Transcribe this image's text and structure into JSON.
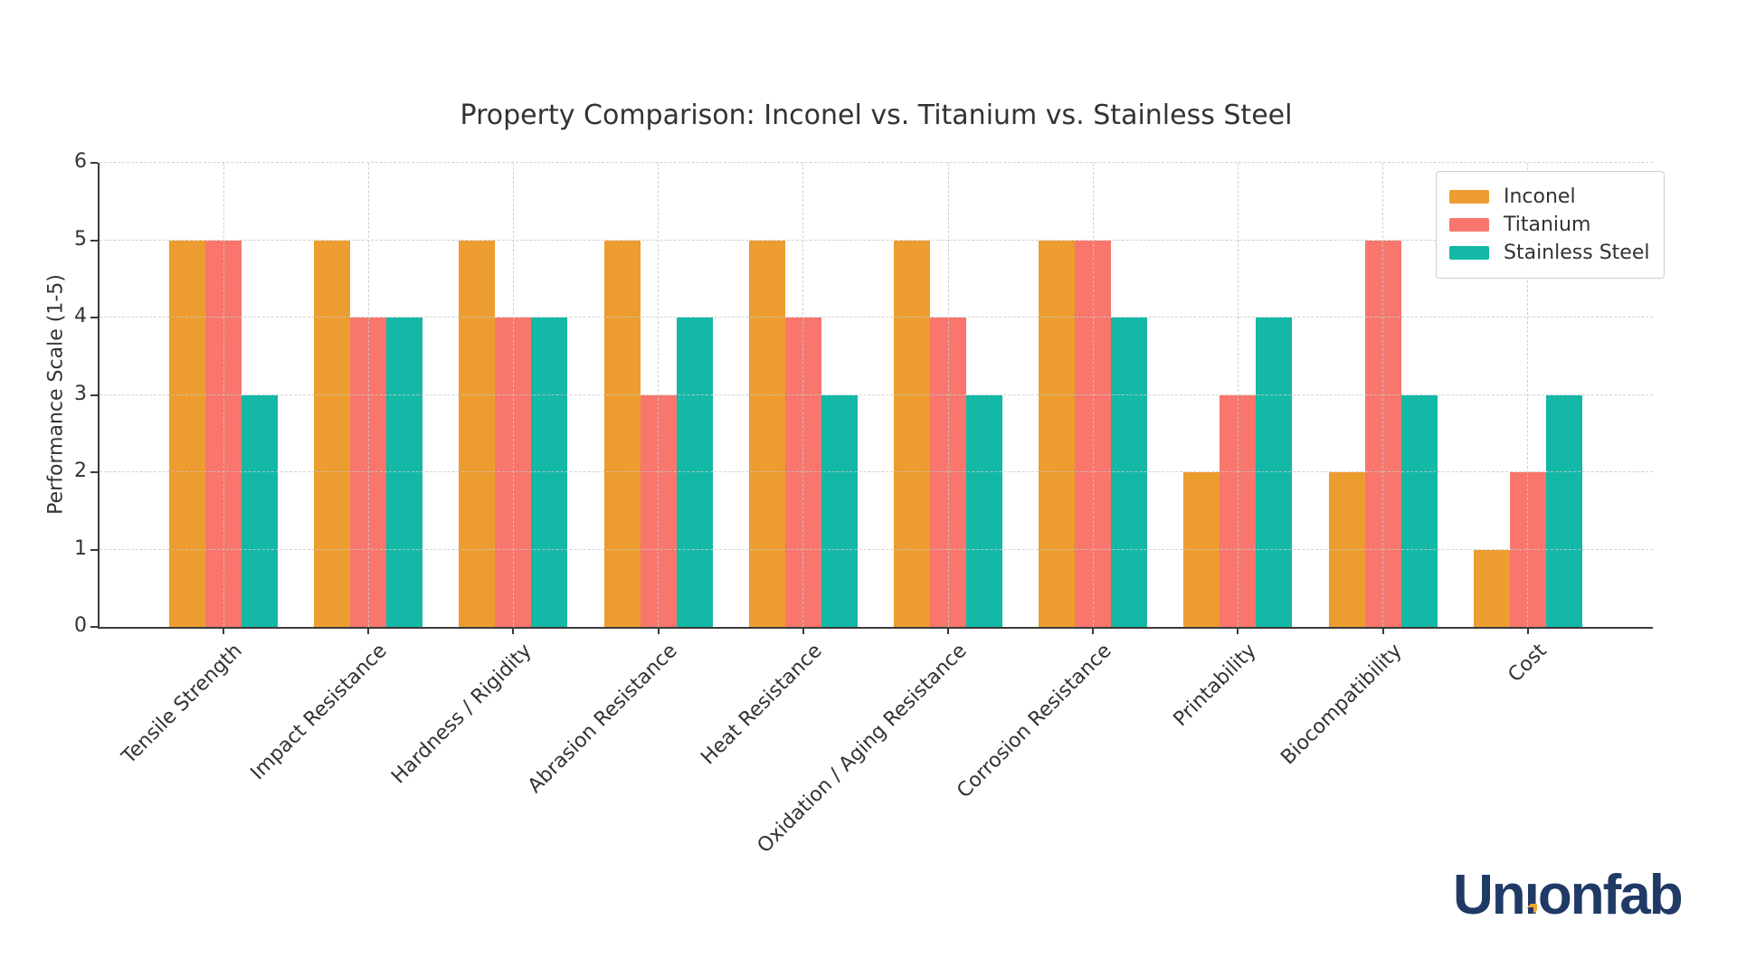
{
  "chart_data": {
    "type": "bar",
    "title": "Property Comparison: Inconel vs. Titanium vs. Stainless Steel",
    "ylabel": "Performance Scale (1-5)",
    "xlabel": "",
    "ylim": [
      0,
      6
    ],
    "yticks": [
      0,
      1,
      2,
      3,
      4,
      5,
      6
    ],
    "categories": [
      "Tensile Strength",
      "Impact Resistance",
      "Hardness / Rigidity",
      "Abrasion Resistance",
      "Heat Resistance",
      "Oxidation / Aging Resistance",
      "Corrosion Resistance",
      "Printability",
      "Biocompatibility",
      "Cost"
    ],
    "series": [
      {
        "name": "Inconel",
        "color": "#ED9C2F",
        "values": [
          5,
          5,
          5,
          5,
          5,
          5,
          5,
          2,
          2,
          1
        ]
      },
      {
        "name": "Titanium",
        "color": "#F8766C",
        "values": [
          5,
          4,
          4,
          3,
          4,
          4,
          5,
          3,
          5,
          2
        ]
      },
      {
        "name": "Stainless Steel",
        "color": "#13B8A6",
        "values": [
          3,
          4,
          4,
          4,
          3,
          3,
          4,
          4,
          3,
          3
        ]
      }
    ],
    "legend_position": "upper right",
    "grid": "dashed gridlines on both axes, drawn over bars",
    "tick_label_rotation": 45,
    "axis_color": "#3a3a3a",
    "grid_color": "#c9c9c9",
    "text_color": "#333333"
  },
  "branding": {
    "logo_text": "Unionfab",
    "logo_color": "#203A66",
    "logo_accent_color": "#F0A330"
  }
}
